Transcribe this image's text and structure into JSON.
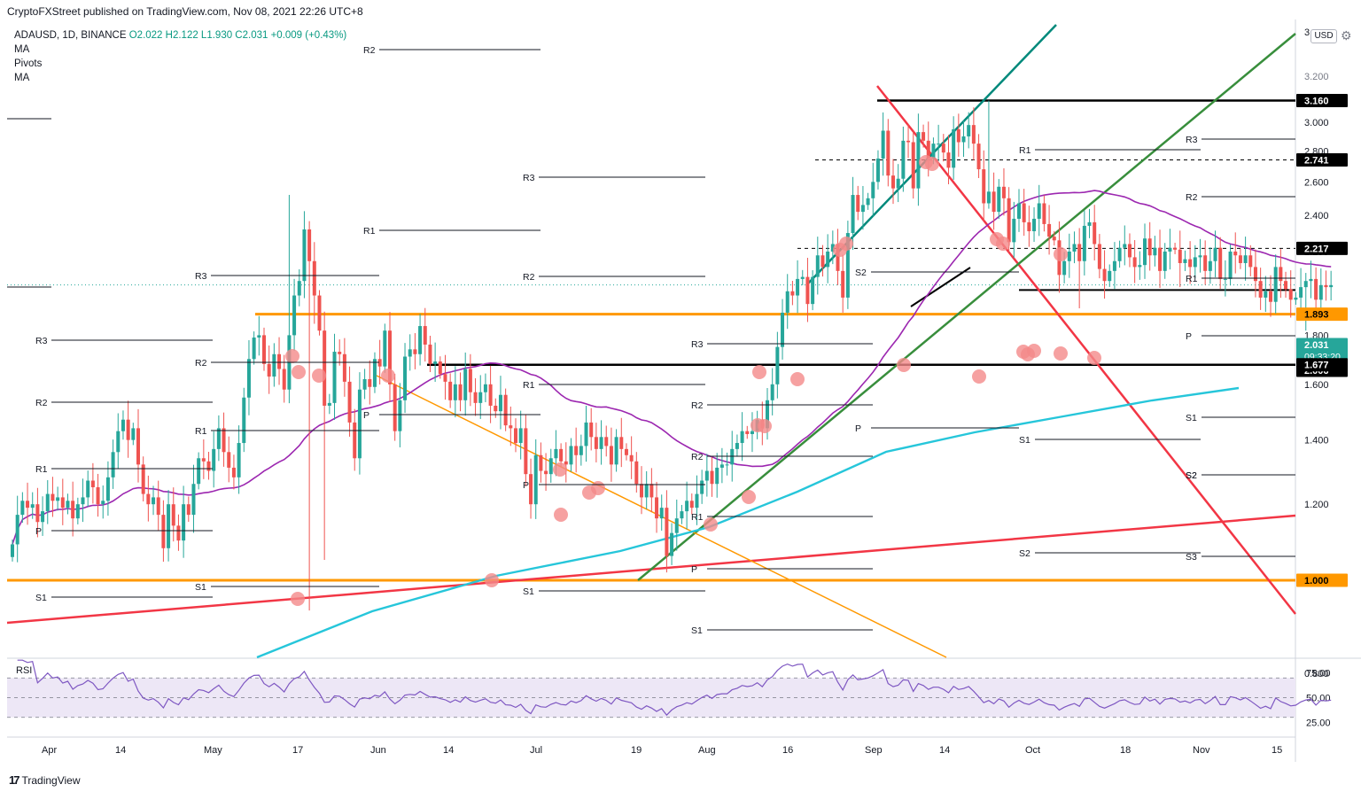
{
  "header": {
    "publish_text": "CryptoFXStreet published on TradingView.com, Nov 08, 2021 22:26 UTC+8"
  },
  "legend": {
    "symbol": "ADAUSD, 1D, BINANCE",
    "ohlc": "O2.022  H2.122  L1.930  C2.031  +0.009 (+0.43%)",
    "line2": "MA",
    "line3": "Pivots",
    "line4": "MA"
  },
  "axis_currency": "USD",
  "footer": {
    "brand": "TradingView"
  },
  "colors": {
    "up": "#26a69a",
    "down": "#ef5350",
    "orange": "#ff9800",
    "teal_ma": "#26c6da",
    "purple_ma": "#9c27b0",
    "red_line": "#f23645",
    "green_line": "#388e3c",
    "dark_teal": "#00897b",
    "marker": "#f48a8a",
    "rsi_fill": "#ede7f6",
    "rsi_line": "#7e57c2"
  },
  "chart_data": {
    "type": "candlestick",
    "symbol": "ADAUSD",
    "interval": "1D",
    "exchange": "BINANCE",
    "y_axis": {
      "scale": "log",
      "ticks": [
        3.0,
        2.8,
        2.6,
        2.4,
        2.2,
        1.8,
        1.6,
        1.4,
        1.2,
        1.0,
        0.8
      ],
      "clipped_top_label": "3.",
      "clipped_label_3_200": "3.200"
    },
    "x_axis": {
      "tick_labels": [
        "Apr",
        "14",
        "May",
        "17",
        "Jun",
        "14",
        "Jul",
        "19",
        "Aug",
        "16",
        "Sep",
        "14",
        "Oct",
        "18",
        "Nov",
        "15"
      ]
    },
    "price_labels": [
      {
        "text": "3.160",
        "style": "black"
      },
      {
        "text": "2.741",
        "style": "black"
      },
      {
        "text": "2.217",
        "style": "black"
      },
      {
        "text": "2.031",
        "sub": "09:33:20",
        "style": "teal"
      },
      {
        "text": "2.006",
        "style": "black"
      },
      {
        "text": "1.893",
        "style": "orange"
      },
      {
        "text": "1.677",
        "style": "black"
      },
      {
        "text": "1.000",
        "style": "orange"
      }
    ],
    "pivot_labels": [
      "R2",
      "R3",
      "R2",
      "R1",
      "R1",
      "P",
      "S1",
      "R2",
      "R3",
      "R2",
      "R1",
      "P",
      "S1",
      "R3",
      "R2",
      "R1",
      "P",
      "S1",
      "R3",
      "R2",
      "R1",
      "P",
      "S1",
      "S2",
      "P",
      "R1",
      "S1",
      "S2",
      "R3",
      "R2",
      "R1",
      "P",
      "S1",
      "S2",
      "S3",
      "S2"
    ],
    "key_levels": [
      3.16,
      2.741,
      2.217,
      2.006,
      1.893,
      1.677,
      1.0
    ],
    "last": {
      "open": 2.022,
      "high": 2.122,
      "low": 1.93,
      "close": 2.031,
      "change": 0.009,
      "change_pct": 0.43
    },
    "rsi": {
      "label": "RSI",
      "ticks": [
        75.0,
        50.0,
        25.0
      ],
      "band": [
        30,
        70
      ]
    },
    "closes": [
      1.09,
      1.17,
      1.21,
      1.19,
      1.2,
      1.15,
      1.18,
      1.23,
      1.21,
      1.22,
      1.19,
      1.21,
      1.16,
      1.2,
      1.22,
      1.27,
      1.25,
      1.2,
      1.21,
      1.28,
      1.36,
      1.43,
      1.47,
      1.4,
      1.44,
      1.32,
      1.23,
      1.2,
      1.22,
      1.17,
      1.08,
      1.2,
      1.14,
      1.1,
      1.2,
      1.17,
      1.26,
      1.34,
      1.33,
      1.3,
      1.37,
      1.44,
      1.36,
      1.31,
      1.28,
      1.39,
      1.55,
      1.7,
      1.79,
      1.8,
      1.68,
      1.63,
      1.72,
      1.66,
      1.58,
      1.8,
      1.98,
      2.05,
      2.32,
      2.15,
      1.98,
      1.82,
      1.52,
      1.53,
      1.73,
      1.72,
      1.61,
      1.46,
      1.34,
      1.58,
      1.62,
      1.59,
      1.7,
      1.67,
      1.82,
      1.6,
      1.43,
      1.54,
      1.71,
      1.74,
      1.72,
      1.84,
      1.76,
      1.68,
      1.69,
      1.64,
      1.61,
      1.54,
      1.6,
      1.54,
      1.66,
      1.57,
      1.53,
      1.57,
      1.6,
      1.52,
      1.5,
      1.56,
      1.45,
      1.44,
      1.39,
      1.44,
      1.29,
      1.2,
      1.35,
      1.3,
      1.29,
      1.34,
      1.37,
      1.33,
      1.32,
      1.38,
      1.35,
      1.38,
      1.46,
      1.41,
      1.37,
      1.41,
      1.38,
      1.32,
      1.41,
      1.37,
      1.35,
      1.33,
      1.26,
      1.22,
      1.26,
      1.22,
      1.16,
      1.19,
      1.06,
      1.12,
      1.16,
      1.18,
      1.21,
      1.19,
      1.23,
      1.27,
      1.3,
      1.26,
      1.31,
      1.32,
      1.32,
      1.37,
      1.39,
      1.43,
      1.42,
      1.43,
      1.47,
      1.44,
      1.54,
      1.6,
      1.75,
      1.9,
      2.0,
      1.98,
      2.06,
      2.07,
      1.94,
      2.07,
      2.18,
      2.12,
      2.2,
      2.24,
      2.1,
      1.97,
      2.3,
      2.52,
      2.42,
      2.46,
      2.5,
      2.6,
      2.75,
      2.94,
      2.64,
      2.56,
      2.62,
      2.87,
      2.86,
      2.56,
      2.93,
      2.87,
      2.75,
      2.85,
      2.85,
      2.79,
      2.69,
      2.95,
      2.86,
      2.9,
      2.98,
      2.85,
      2.68,
      2.47,
      2.54,
      2.42,
      2.57,
      2.5,
      2.25,
      2.38,
      2.47,
      2.36,
      2.31,
      2.38,
      2.47,
      2.35,
      2.28,
      2.26,
      2.08,
      2.15,
      2.2,
      2.24,
      2.15,
      2.34,
      2.36,
      2.24,
      2.11,
      2.05,
      2.1,
      2.15,
      2.22,
      2.24,
      2.17,
      2.12,
      2.13,
      2.27,
      2.18,
      2.22,
      2.1,
      2.2,
      2.22,
      2.21,
      2.14,
      2.16,
      2.12,
      2.17,
      2.18,
      2.1,
      2.15,
      2.22,
      2.06,
      2.06,
      2.2,
      2.18,
      2.14,
      2.18,
      2.12,
      2.05,
      1.97,
      2.0,
      1.95,
      2.12,
      2.05,
      2.01,
      1.96,
      1.97,
      2.02,
      2.05,
      2.06,
      1.96,
      2.03,
      2.02,
      2.03
    ]
  }
}
